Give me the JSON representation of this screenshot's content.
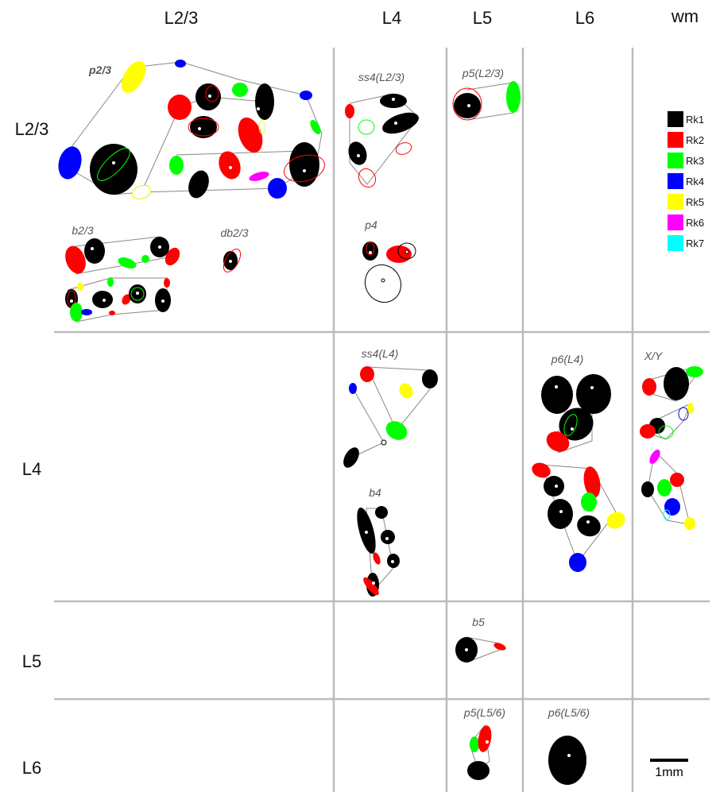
{
  "columns": [
    "L2/3",
    "L4",
    "L5",
    "L6",
    "wm"
  ],
  "rows": [
    "L2/3",
    "L4",
    "L5",
    "L6"
  ],
  "cells": {
    "p2_3": "p2/3",
    "ss4_l23": "ss4(L2/3)",
    "p5_l23": "p5(L2/3)",
    "b2_3": "b2/3",
    "db2_3": "db2/3",
    "p4": "p4",
    "ss4_l4": "ss4(L4)",
    "p6_l4": "p6(L4)",
    "xy": "X/Y",
    "b4": "b4",
    "b5": "b5",
    "p5_l56": "p5(L5/6)",
    "p6_l56": "p6(L5/6)"
  },
  "legend": [
    "Rk1",
    "Rk2",
    "Rk3",
    "Rk4",
    "Rk5",
    "Rk6",
    "Rk7"
  ],
  "scale_bar": "1mm"
}
